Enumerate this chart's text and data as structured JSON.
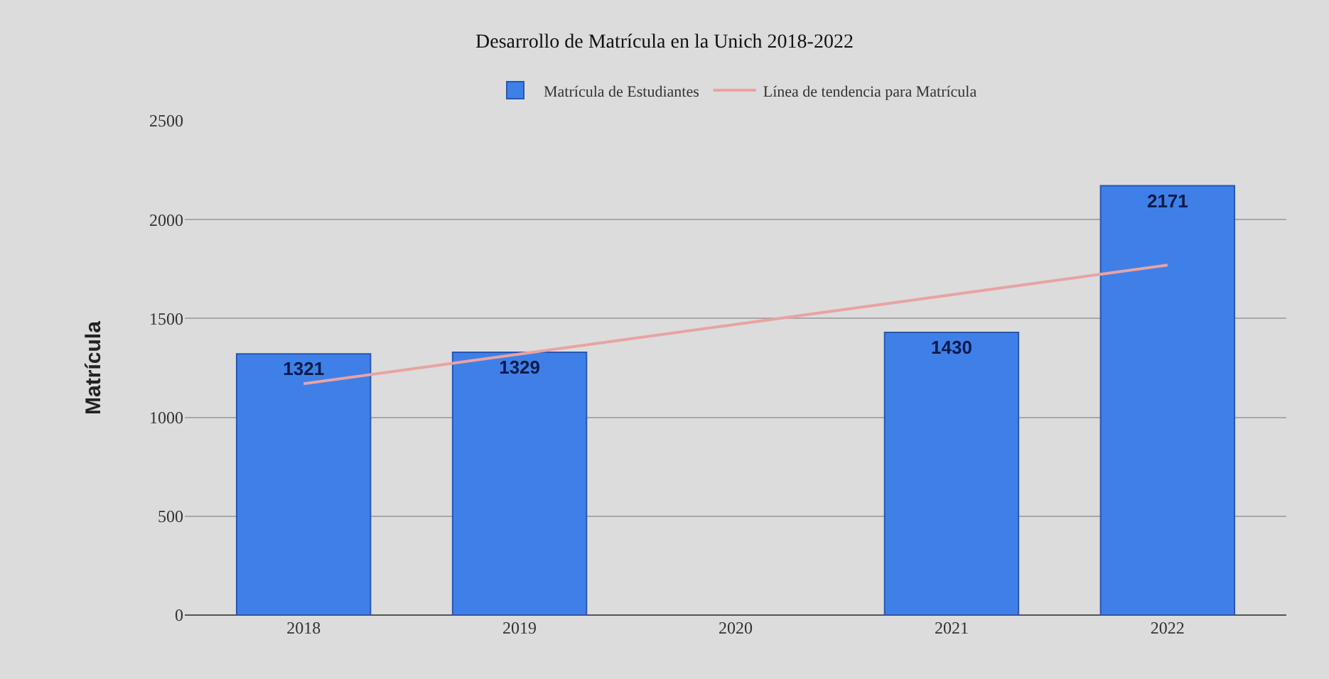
{
  "chart_data": {
    "type": "bar",
    "title": "Desarrollo de Matrícula en la Unich 2018-2022",
    "ylabel": "Matrícula",
    "categories": [
      "2018",
      "2019",
      "2020",
      "2021",
      "2022"
    ],
    "series": [
      {
        "name": "Matrícula de Estudiantes",
        "color": "#3f7fe8",
        "values": [
          1321,
          1329,
          null,
          1430,
          2171
        ],
        "value_labels": [
          "1321",
          "1329",
          null,
          "1430",
          "2171"
        ]
      },
      {
        "name": "Línea de tendencia para Matrícula",
        "type": "line",
        "color": "#e8a3a3",
        "values": [
          1170,
          1320,
          1470,
          1620,
          1770
        ]
      }
    ],
    "ylim": [
      0,
      2500
    ],
    "yticks": [
      0,
      500,
      1000,
      1500,
      2000,
      2500
    ],
    "grid": "y",
    "legend": "top",
    "marker": "none",
    "line_style": "solid"
  }
}
